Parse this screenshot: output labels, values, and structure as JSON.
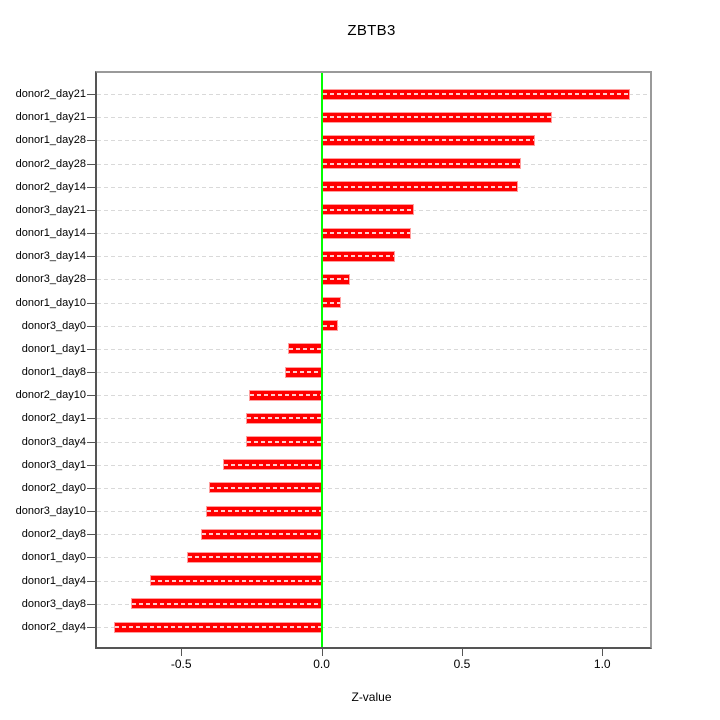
{
  "chart_data": {
    "type": "bar",
    "orientation": "horizontal",
    "title": "ZBTB3",
    "xlabel": "Z-value",
    "ylabel": "",
    "categories": [
      "donor2_day21",
      "donor1_day21",
      "donor1_day28",
      "donor2_day28",
      "donor2_day14",
      "donor3_day21",
      "donor1_day14",
      "donor3_day14",
      "donor3_day28",
      "donor1_day10",
      "donor3_day0",
      "donor1_day1",
      "donor1_day8",
      "donor2_day10",
      "donor2_day1",
      "donor3_day4",
      "donor3_day1",
      "donor2_day0",
      "donor3_day10",
      "donor2_day8",
      "donor1_day0",
      "donor1_day4",
      "donor3_day8",
      "donor2_day4"
    ],
    "values": [
      1.1,
      0.82,
      0.76,
      0.71,
      0.7,
      0.33,
      0.32,
      0.26,
      0.1,
      0.07,
      0.06,
      -0.12,
      -0.13,
      -0.26,
      -0.27,
      -0.27,
      -0.35,
      -0.4,
      -0.41,
      -0.43,
      -0.48,
      -0.61,
      -0.68,
      -0.74
    ],
    "xlim": [
      -0.8,
      1.17
    ],
    "x_ticks": [
      {
        "label": "-0.5",
        "value": -0.5
      },
      {
        "label": "0.0",
        "value": 0.0
      },
      {
        "label": "0.5",
        "value": 0.5
      },
      {
        "label": "1.0",
        "value": 1.0
      }
    ],
    "grid": "horizontal-dashed-per-category",
    "legend_position": "none",
    "zero_reference_line": 0.0,
    "colors": {
      "bar": "#ff0000",
      "bar_border": "#ff9e9e",
      "zero_line": "#00ff00",
      "grid": "#d9d9d9",
      "box": "#9a9a9a",
      "axis": "#555555",
      "text": "#000000"
    }
  }
}
